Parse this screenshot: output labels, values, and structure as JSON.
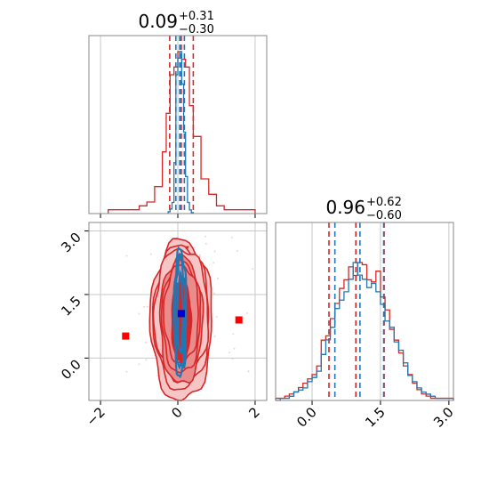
{
  "chart_data": [
    {
      "type": "histogram",
      "panel": "top-left",
      "parameter_index": 0,
      "title_main": "0.09",
      "title_plus": "+0.31",
      "title_minus": "−0.30",
      "xlim": [
        -2.3,
        2.3
      ],
      "xticks": [
        -2,
        0,
        2
      ],
      "x_tick_labels_shown": false,
      "grid": true,
      "series": [
        {
          "name": "",
          "color": "#d62728",
          "bin_edges": [
            -1.8,
            -1.6,
            -1.4,
            -1.2,
            -1.0,
            -0.8,
            -0.6,
            -0.4,
            -0.3,
            -0.2,
            -0.1,
            0.0,
            0.1,
            0.2,
            0.3,
            0.4,
            0.6,
            0.8,
            1.0,
            1.2,
            1.4,
            1.6,
            1.8,
            2.0
          ],
          "counts": [
            1,
            1,
            1,
            1,
            2,
            3,
            7,
            16,
            26,
            36,
            38,
            42,
            40,
            38,
            28,
            20,
            9,
            5,
            2,
            1,
            1,
            1,
            1
          ],
          "quantile_lines": [
            -0.21,
            0.09,
            0.4
          ]
        },
        {
          "name": "",
          "color": "#1f77b4",
          "bin_edges": [
            -0.25,
            -0.2,
            -0.15,
            -0.1,
            -0.05,
            0.0,
            0.05,
            0.1,
            0.15,
            0.2,
            0.25,
            0.3,
            0.35,
            0.4
          ],
          "counts": [
            2,
            5,
            12,
            55,
            150,
            168,
            175,
            140,
            88,
            40,
            12,
            4,
            1
          ],
          "quantile_lines": [
            -0.05,
            0.05,
            0.17
          ]
        }
      ]
    },
    {
      "type": "histogram",
      "panel": "bottom-right",
      "parameter_index": 1,
      "title_main": "0.96",
      "title_plus": "+0.62",
      "title_minus": "−0.60",
      "xlim": [
        -0.8,
        3.1
      ],
      "xticks": [
        0.0,
        1.5,
        3.0
      ],
      "xtick_labels": [
        "0.0",
        "1.5",
        "3.0"
      ],
      "grid": true,
      "series": [
        {
          "name": "",
          "color": "#d62728",
          "bin_edges": [
            -0.8,
            -0.7,
            -0.6,
            -0.5,
            -0.4,
            -0.3,
            -0.2,
            -0.1,
            0.0,
            0.1,
            0.2,
            0.3,
            0.4,
            0.5,
            0.6,
            0.7,
            0.8,
            0.9,
            1.0,
            1.1,
            1.2,
            1.3,
            1.4,
            1.5,
            1.6,
            1.7,
            1.8,
            1.9,
            2.0,
            2.1,
            2.2,
            2.3,
            2.4,
            2.5,
            2.6,
            2.7,
            2.8,
            2.9,
            3.0,
            3.1
          ],
          "counts": [
            1,
            1,
            2,
            3,
            4,
            6,
            8,
            10,
            12,
            16,
            28,
            30,
            38,
            45,
            52,
            56,
            62,
            58,
            64,
            63,
            56,
            55,
            60,
            48,
            42,
            33,
            28,
            22,
            16,
            12,
            8,
            5,
            3,
            2,
            1,
            1,
            1,
            1,
            1
          ],
          "quantile_lines": [
            0.37,
            0.96,
            1.58
          ]
        },
        {
          "name": "",
          "color": "#1f77b4",
          "bin_edges": [
            -0.8,
            -0.7,
            -0.6,
            -0.5,
            -0.4,
            -0.3,
            -0.2,
            -0.1,
            0.0,
            0.1,
            0.2,
            0.3,
            0.4,
            0.5,
            0.6,
            0.7,
            0.8,
            0.9,
            1.0,
            1.1,
            1.2,
            1.3,
            1.4,
            1.5,
            1.6,
            1.7,
            1.8,
            1.9,
            2.0,
            2.1,
            2.2,
            2.3,
            2.4,
            2.5,
            2.6,
            2.7,
            2.8,
            2.9,
            3.0,
            3.1
          ],
          "counts": [
            0,
            1,
            1,
            2,
            4,
            5,
            6,
            9,
            11,
            14,
            22,
            29,
            35,
            44,
            48,
            52,
            58,
            66,
            60,
            58,
            54,
            56,
            52,
            46,
            38,
            35,
            28,
            24,
            18,
            12,
            9,
            6,
            4,
            3,
            2,
            1,
            1,
            1,
            1
          ],
          "quantile_lines": [
            0.5,
            1.05,
            1.57
          ]
        }
      ]
    },
    {
      "type": "scatter",
      "panel": "bottom-left",
      "description": "2D posterior contours, scatter samples and reference markers",
      "xlim": [
        -2.3,
        2.3
      ],
      "ylim": [
        -1.0,
        3.2
      ],
      "xticks": [
        -2,
        0,
        2
      ],
      "xtick_labels": [
        "−2",
        "0",
        "2"
      ],
      "yticks": [
        0.0,
        1.5,
        3.0
      ],
      "ytick_labels": [
        "0.0",
        "1.5",
        "3.0"
      ],
      "grid": true,
      "red_center": [
        0.09,
        0.96
      ],
      "red_level_halfwidths": [
        [
          [
            0.25,
            1.0
          ],
          [
            0.16,
            0.88
          ],
          [
            0.22,
            0.7
          ]
        ],
        [
          [
            0.55,
            1.5
          ],
          [
            0.5,
            1.32
          ],
          [
            0.45,
            1.15
          ]
        ],
        [
          [
            0.8,
            1.9
          ],
          [
            0.72,
            1.7
          ],
          [
            0.7,
            1.55
          ]
        ]
      ],
      "blue_center": [
        0.06,
        1.05
      ],
      "blue_level_halfwidths": [
        [
          0.07,
          0.9
        ],
        [
          0.12,
          1.3
        ],
        [
          0.16,
          1.5
        ]
      ],
      "red_square_markers": [
        [
          -1.35,
          0.52
        ],
        [
          1.58,
          0.9
        ],
        [
          0.09,
          1.05
        ]
      ],
      "blue_square_marker": [
        0.09,
        1.05
      ],
      "red_outlier_marker": [
        0.25,
        2.6
      ]
    }
  ]
}
